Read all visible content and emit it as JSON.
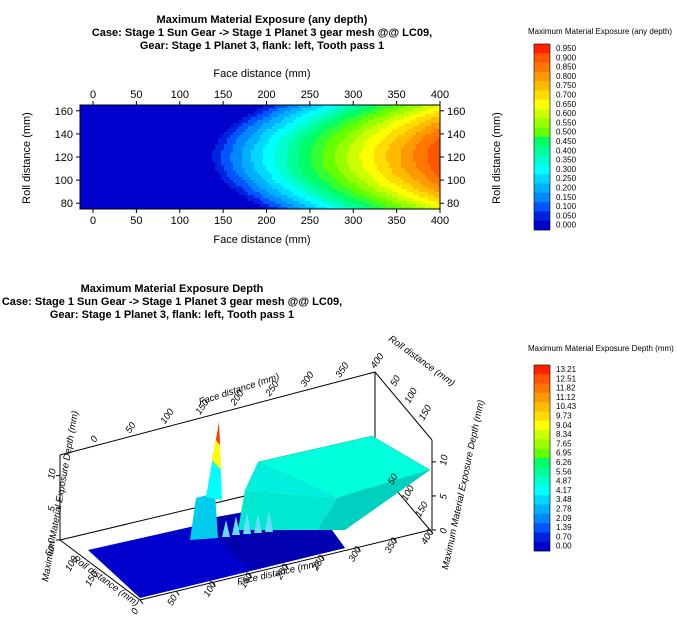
{
  "colors": {
    "stops": [
      "#0000cc",
      "#0022e0",
      "#0055ff",
      "#0088ff",
      "#00b0ff",
      "#00d8ff",
      "#00ffff",
      "#00ffcc",
      "#00ff99",
      "#00ff66",
      "#33ff33",
      "#66ff00",
      "#99ff00",
      "#ccff00",
      "#ffff00",
      "#ffdd00",
      "#ffbb00",
      "#ff9900",
      "#ff7700",
      "#ff5500",
      "#ff2200",
      "#cc0000"
    ]
  },
  "chart_data": [
    {
      "type": "heatmap",
      "title_lines": [
        "Maximum Material Exposure (any depth)",
        "Case: Stage 1 Sun Gear -> Stage 1 Planet 3 gear mesh @@ LC09,",
        "Gear: Stage 1 Planet 3, flank: left, Tooth pass 1"
      ],
      "xlabel": "Face distance (mm)",
      "ylabel": "Roll distance (mm)",
      "xlim": [
        -15,
        400
      ],
      "ylim": [
        75,
        165
      ],
      "x_ticks": [
        "0",
        "50",
        "100",
        "150",
        "200",
        "250",
        "300",
        "350",
        "400"
      ],
      "y_ticks": [
        "80",
        "100",
        "120",
        "140",
        "160"
      ],
      "legend_title": "Maximum Material Exposure (any depth)",
      "legend_levels": [
        "0.950",
        "0.900",
        "0.850",
        "0.800",
        "0.750",
        "0.700",
        "0.650",
        "0.600",
        "0.550",
        "0.500",
        "0.450",
        "0.400",
        "0.350",
        "0.300",
        "0.250",
        "0.200",
        "0.150",
        "0.100",
        "0.050",
        "0.000"
      ],
      "field": {
        "onset_x": 130,
        "max_value": 0.95,
        "peak_y": 120,
        "spread_y": 48
      }
    },
    {
      "type": "surface3d",
      "title_lines": [
        "Maximum Material Exposure Depth",
        "Case: Stage 1 Sun Gear -> Stage 1 Planet 3 gear mesh @@ LC09,",
        "Gear: Stage 1 Planet 3, flank: left, Tooth pass 1"
      ],
      "xlabel": "Face distance (mm)",
      "ylabel": "Roll distance (mm)",
      "zlabel": "Maximum Material Exposure Depth (mm)",
      "x_ticks": [
        "0",
        "50",
        "100",
        "150",
        "200",
        "250",
        "300",
        "350",
        "400"
      ],
      "y_ticks": [
        "50",
        "100",
        "150"
      ],
      "z_ticks": [
        "0",
        "5",
        "10"
      ],
      "legend_title": "Maximum Material Exposure Depth (mm)",
      "legend_levels": [
        "13.21",
        "12.51",
        "11.82",
        "11.12",
        "10.43",
        "9.73",
        "9.04",
        "8.34",
        "7.65",
        "6.95",
        "6.26",
        "5.56",
        "4.87",
        "4.17",
        "3.48",
        "2.78",
        "2.09",
        "1.39",
        "0.70",
        "0.00"
      ],
      "plateau_depth": 4.5,
      "spike_depth": 13.21,
      "plateau_start_x": 180
    }
  ]
}
